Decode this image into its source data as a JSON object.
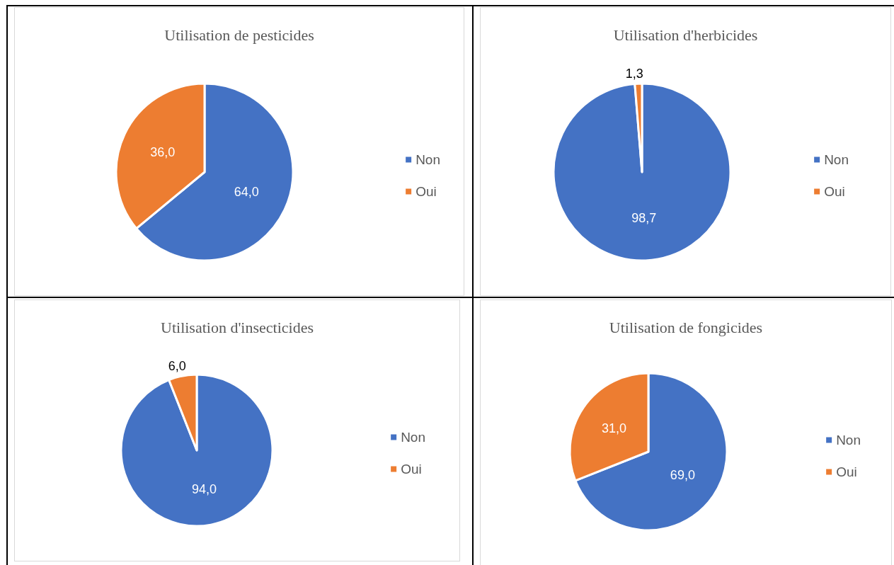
{
  "chart_data": [
    {
      "type": "pie",
      "title": "Utilisation de pesticides",
      "categories": [
        "Non",
        "Oui"
      ],
      "values": [
        64,
        36
      ],
      "colors": [
        "#4472c4",
        "#ed7d31"
      ],
      "value_labels": [
        "64,0",
        "36,0"
      ],
      "legend": "right"
    },
    {
      "type": "pie",
      "title": "Utilisation d'herbicides",
      "categories": [
        "Non",
        "Oui"
      ],
      "values": [
        98.7,
        1.3
      ],
      "colors": [
        "#4472c4",
        "#ed7d31"
      ],
      "value_labels": [
        "98,7",
        "1,3"
      ],
      "legend": "right"
    },
    {
      "type": "pie",
      "title": "Utilisation d'insecticides",
      "categories": [
        "Non",
        "Oui"
      ],
      "values": [
        94,
        6
      ],
      "colors": [
        "#4472c4",
        "#ed7d31"
      ],
      "value_labels": [
        "94,0",
        "6,0"
      ],
      "legend": "right"
    },
    {
      "type": "pie",
      "title": "Utilisation de fongicides",
      "categories": [
        "Non",
        "Oui"
      ],
      "values": [
        69,
        31
      ],
      "colors": [
        "#4472c4",
        "#ed7d31"
      ],
      "value_labels": [
        "69,0",
        "31,0"
      ],
      "legend": "right"
    }
  ]
}
